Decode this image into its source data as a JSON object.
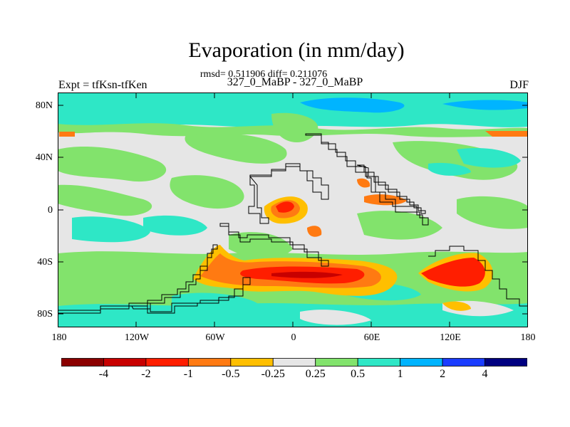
{
  "title": "Evaporation (in mm/day)",
  "stats": "rmsd= 0.511906 diff= 0.211076",
  "left_label": "Expt = tfKsn-tfKen",
  "center_label": "327_0_MaBP - 327_0_MaBP",
  "right_label": "DJF",
  "axes": {
    "y_ticks": [
      "80N",
      "40N",
      "0",
      "40S",
      "80S"
    ],
    "x_ticks": [
      "180",
      "120W",
      "60W",
      "0",
      "60E",
      "120E",
      "180"
    ]
  },
  "colorbar": {
    "labels": [
      "-4",
      "-2",
      "-1",
      "-0.5",
      "-0.25",
      "0.25",
      "0.5",
      "1",
      "2",
      "4"
    ],
    "colors": [
      "#8b0000",
      "#c80000",
      "#ff1e00",
      "#ff7a12",
      "#ffbf00",
      "#e6e6e6",
      "#82e36c",
      "#2ee7c6",
      "#00b4ff",
      "#1a3cff",
      "#000080"
    ]
  }
}
